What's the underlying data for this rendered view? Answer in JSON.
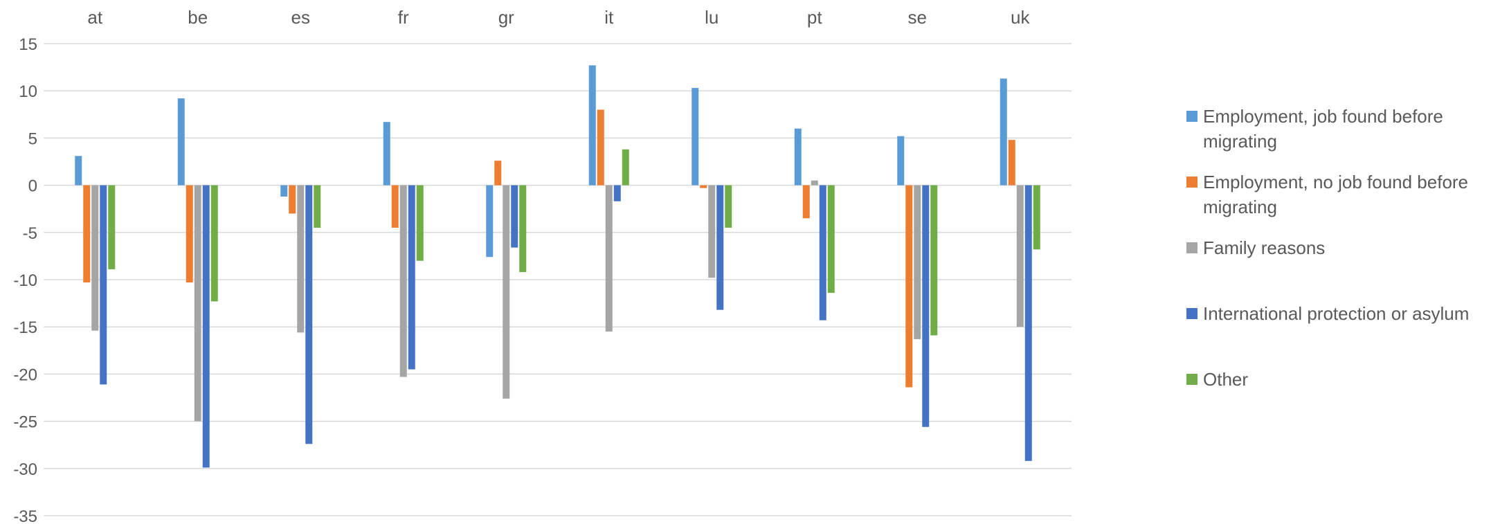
{
  "chart_data": {
    "type": "bar",
    "categories": [
      "at",
      "be",
      "es",
      "fr",
      "gr",
      "it",
      "lu",
      "pt",
      "se",
      "uk"
    ],
    "series": [
      {
        "name": "Employment, job found before migrating",
        "color": "#5B9BD5",
        "values": [
          3.1,
          9.2,
          -1.2,
          6.7,
          -7.6,
          12.7,
          10.3,
          6.0,
          5.2,
          11.3
        ]
      },
      {
        "name": "Employment, no job found before migrating",
        "color": "#ED7D31",
        "values": [
          -10.3,
          -10.3,
          -3.0,
          -4.5,
          2.6,
          8.0,
          -0.3,
          -3.5,
          -21.4,
          4.8
        ]
      },
      {
        "name": "Family reasons",
        "color": "#A5A5A5",
        "values": [
          -15.4,
          -25.0,
          -15.6,
          -20.3,
          -22.6,
          -15.5,
          -9.8,
          0.5,
          -16.3,
          -15.0
        ]
      },
      {
        "name": "International protection or asylum",
        "color": "#4472C4",
        "values": [
          -21.1,
          -29.9,
          -27.4,
          -19.5,
          -6.6,
          -1.7,
          -13.2,
          -14.3,
          -25.6,
          -29.2
        ]
      },
      {
        "name": "Other",
        "color": "#70AD47",
        "values": [
          -8.9,
          -12.3,
          -4.5,
          -8.0,
          -9.2,
          3.8,
          -4.5,
          -11.4,
          -15.9,
          -6.8
        ]
      }
    ],
    "yticks": [
      "15",
      "10",
      "5",
      "0",
      "-5",
      "-10",
      "-15",
      "-20",
      "-25",
      "-30",
      "-35"
    ],
    "ylim": [
      -35,
      15
    ],
    "grid": true,
    "xaxis_position": "top",
    "legend_position": "right"
  }
}
